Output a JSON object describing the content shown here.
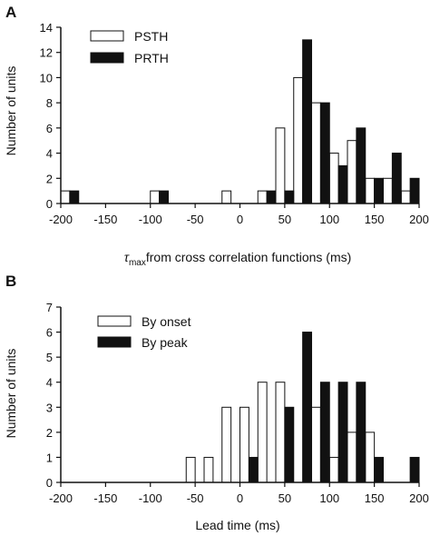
{
  "chart_data": [
    {
      "panel_label": "A",
      "type": "bar",
      "xlabel_symbol": "τ",
      "xlabel_subscript": "max",
      "xlabel_rest": "from cross correlation functions (ms)",
      "ylabel": "Number of units",
      "xlim": [
        -200,
        200
      ],
      "ylim": [
        0,
        14
      ],
      "x_ticks": [
        "-200",
        "-150",
        "-100",
        "-50",
        "0",
        "50",
        "100",
        "150",
        "200"
      ],
      "y_ticks": [
        "0",
        "2",
        "4",
        "6",
        "8",
        "10",
        "12",
        "14"
      ],
      "legend_position": "top-left",
      "bin_width": 10,
      "series": [
        {
          "name": "PSTH",
          "style": "open",
          "x": [
            -195,
            -95,
            -15,
            25,
            45,
            65,
            85,
            105,
            125,
            145,
            165,
            185
          ],
          "values": [
            1,
            1,
            1,
            1,
            6,
            10,
            8,
            4,
            5,
            2,
            2,
            1
          ]
        },
        {
          "name": "PRTH",
          "style": "filled",
          "x": [
            -185,
            -85,
            35,
            55,
            75,
            95,
            115,
            135,
            155,
            175,
            195
          ],
          "values": [
            1,
            1,
            1,
            1,
            13,
            8,
            3,
            6,
            2,
            4,
            2
          ]
        }
      ]
    },
    {
      "panel_label": "B",
      "type": "bar",
      "xlabel": "Lead time (ms)",
      "ylabel": "Number of units",
      "xlim": [
        -200,
        200
      ],
      "ylim": [
        0,
        7
      ],
      "x_ticks": [
        "-200",
        "-150",
        "-100",
        "-50",
        "0",
        "50",
        "100",
        "150",
        "200"
      ],
      "y_ticks": [
        "0",
        "1",
        "2",
        "3",
        "4",
        "5",
        "6",
        "7"
      ],
      "legend_position": "top-left",
      "bin_width": 10,
      "series": [
        {
          "name": "By onset",
          "style": "open",
          "x": [
            -55,
            -35,
            -15,
            5,
            25,
            45,
            85,
            105,
            125,
            145
          ],
          "values": [
            1,
            1,
            3,
            3,
            4,
            4,
            3,
            1,
            2,
            2
          ]
        },
        {
          "name": "By peak",
          "style": "filled",
          "x": [
            15,
            55,
            75,
            95,
            115,
            135,
            155,
            195
          ],
          "values": [
            1,
            3,
            6,
            4,
            4,
            4,
            1,
            1
          ]
        }
      ]
    }
  ]
}
